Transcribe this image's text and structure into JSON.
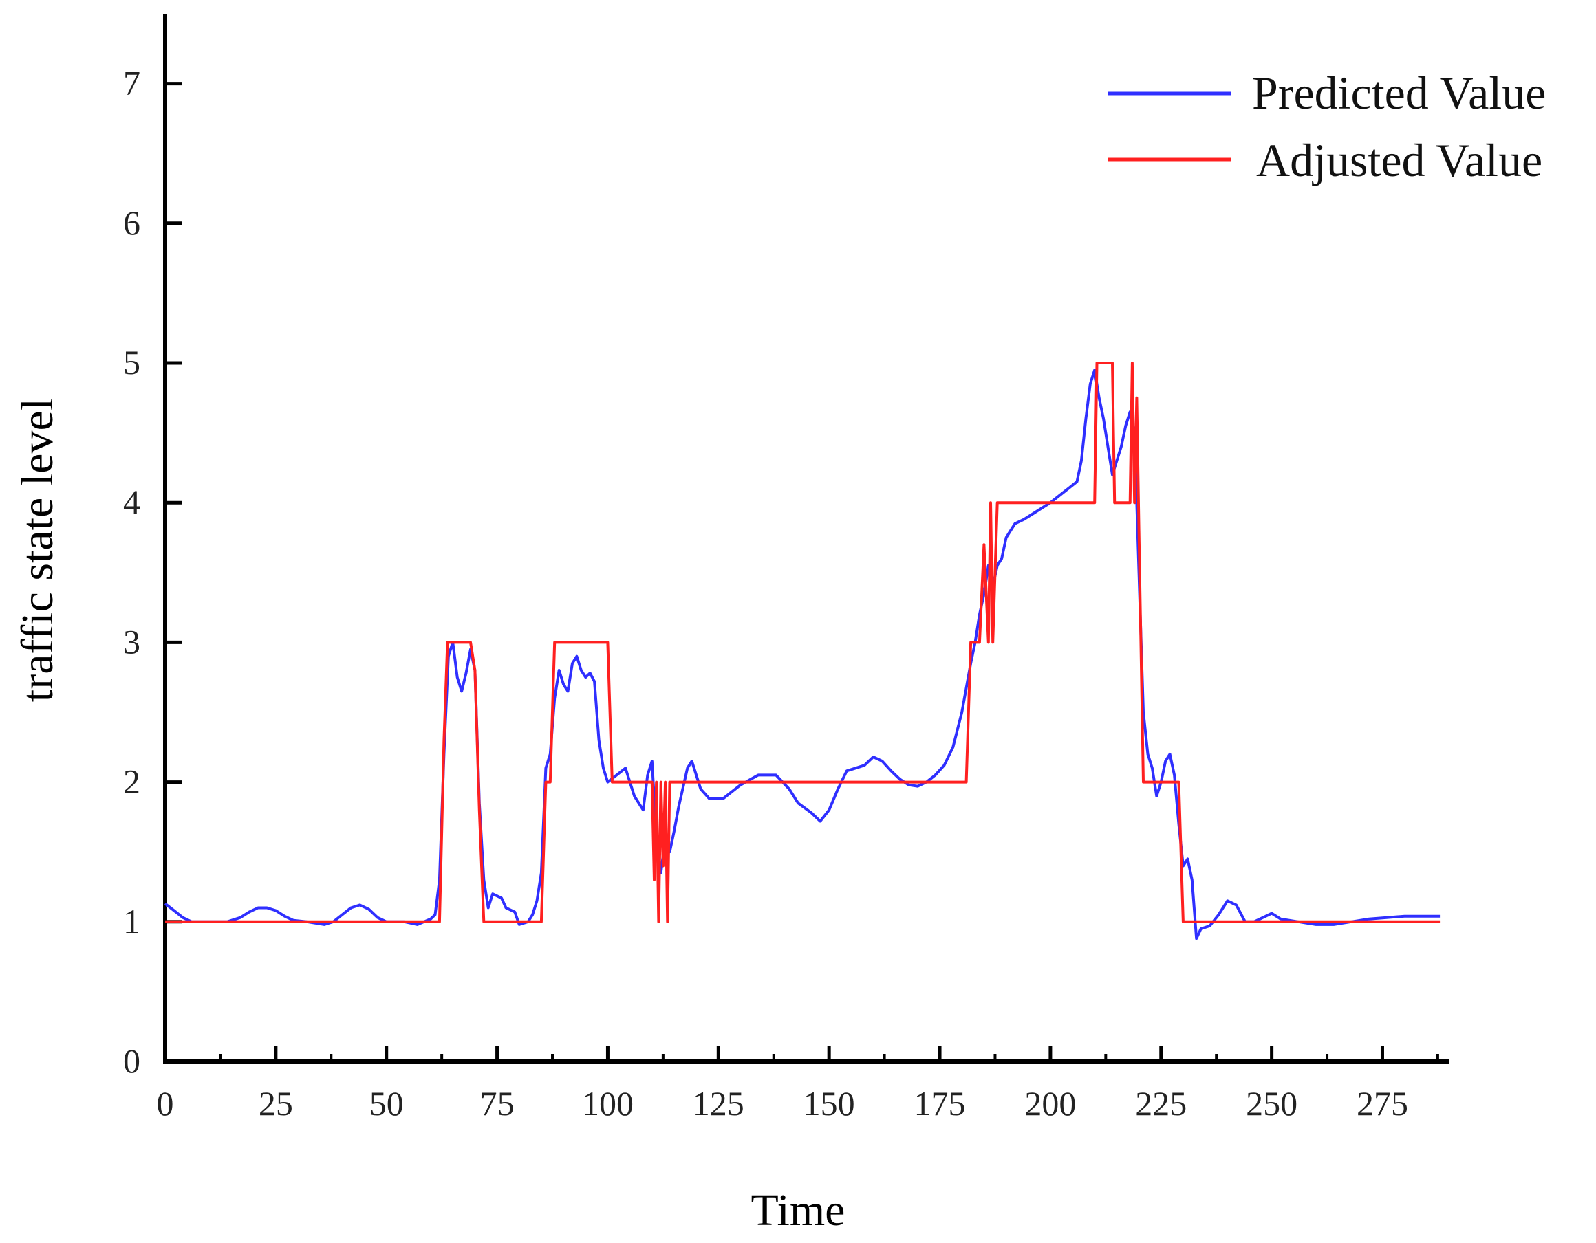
{
  "chart_data": {
    "type": "line",
    "xlabel": "Time",
    "ylabel": "traffic state level",
    "xlim": [
      0,
      290
    ],
    "ylim": [
      0,
      7.5
    ],
    "x_ticks": [
      0,
      25,
      50,
      75,
      100,
      125,
      150,
      175,
      200,
      225,
      250,
      275
    ],
    "y_ticks": [
      0,
      1,
      2,
      3,
      4,
      5,
      6,
      7
    ],
    "grid": false,
    "legend_position": "top-right",
    "series": [
      {
        "name": "Predicted Value",
        "color": "#2f2fff",
        "points": [
          [
            0,
            1.13
          ],
          [
            2,
            1.08
          ],
          [
            4,
            1.03
          ],
          [
            6,
            1.0
          ],
          [
            10,
            1.0
          ],
          [
            14,
            1.0
          ],
          [
            17,
            1.03
          ],
          [
            19,
            1.07
          ],
          [
            21,
            1.1
          ],
          [
            23,
            1.1
          ],
          [
            25,
            1.08
          ],
          [
            27,
            1.04
          ],
          [
            29,
            1.01
          ],
          [
            32,
            1.0
          ],
          [
            36,
            0.98
          ],
          [
            38,
            1.0
          ],
          [
            40,
            1.05
          ],
          [
            42,
            1.1
          ],
          [
            44,
            1.12
          ],
          [
            46,
            1.09
          ],
          [
            48,
            1.03
          ],
          [
            50,
            1.0
          ],
          [
            54,
            1.0
          ],
          [
            57,
            0.98
          ],
          [
            60,
            1.02
          ],
          [
            61,
            1.05
          ],
          [
            62,
            1.3
          ],
          [
            63,
            2.2
          ],
          [
            64,
            2.9
          ],
          [
            65,
            3.0
          ],
          [
            66,
            2.75
          ],
          [
            67,
            2.65
          ],
          [
            68,
            2.78
          ],
          [
            69,
            2.95
          ],
          [
            70,
            2.8
          ],
          [
            71,
            1.85
          ],
          [
            72,
            1.3
          ],
          [
            73,
            1.1
          ],
          [
            74,
            1.2
          ],
          [
            76,
            1.17
          ],
          [
            77,
            1.1
          ],
          [
            79,
            1.07
          ],
          [
            80,
            0.98
          ],
          [
            82,
            1.0
          ],
          [
            83,
            1.05
          ],
          [
            84,
            1.15
          ],
          [
            85,
            1.35
          ],
          [
            86,
            2.1
          ],
          [
            87,
            2.2
          ],
          [
            88,
            2.6
          ],
          [
            89,
            2.8
          ],
          [
            90,
            2.7
          ],
          [
            91,
            2.65
          ],
          [
            92,
            2.85
          ],
          [
            93,
            2.9
          ],
          [
            94,
            2.8
          ],
          [
            95,
            2.75
          ],
          [
            96,
            2.78
          ],
          [
            97,
            2.72
          ],
          [
            98,
            2.3
          ],
          [
            99,
            2.1
          ],
          [
            100,
            2.0
          ],
          [
            102,
            2.05
          ],
          [
            104,
            2.1
          ],
          [
            106,
            1.9
          ],
          [
            108,
            1.8
          ],
          [
            109,
            2.05
          ],
          [
            110,
            2.15
          ],
          [
            111,
            1.6
          ],
          [
            112,
            1.35
          ],
          [
            113,
            1.6
          ],
          [
            114,
            1.5
          ],
          [
            115,
            1.65
          ],
          [
            116,
            1.82
          ],
          [
            118,
            2.1
          ],
          [
            119,
            2.15
          ],
          [
            121,
            1.95
          ],
          [
            123,
            1.88
          ],
          [
            126,
            1.88
          ],
          [
            130,
            1.98
          ],
          [
            134,
            2.05
          ],
          [
            138,
            2.05
          ],
          [
            141,
            1.95
          ],
          [
            143,
            1.85
          ],
          [
            146,
            1.78
          ],
          [
            148,
            1.72
          ],
          [
            150,
            1.8
          ],
          [
            152,
            1.95
          ],
          [
            154,
            2.08
          ],
          [
            156,
            2.1
          ],
          [
            158,
            2.12
          ],
          [
            160,
            2.18
          ],
          [
            162,
            2.15
          ],
          [
            164,
            2.08
          ],
          [
            166,
            2.02
          ],
          [
            168,
            1.98
          ],
          [
            170,
            1.97
          ],
          [
            172,
            2.0
          ],
          [
            174,
            2.05
          ],
          [
            176,
            2.12
          ],
          [
            178,
            2.25
          ],
          [
            180,
            2.5
          ],
          [
            182,
            2.85
          ],
          [
            183,
            3.0
          ],
          [
            184,
            3.2
          ],
          [
            185,
            3.35
          ],
          [
            186,
            3.55
          ],
          [
            187,
            3.4
          ],
          [
            188,
            3.55
          ],
          [
            189,
            3.6
          ],
          [
            190,
            3.75
          ],
          [
            192,
            3.85
          ],
          [
            194,
            3.88
          ],
          [
            196,
            3.92
          ],
          [
            198,
            3.96
          ],
          [
            200,
            4.0
          ],
          [
            202,
            4.05
          ],
          [
            204,
            4.1
          ],
          [
            206,
            4.15
          ],
          [
            207,
            4.3
          ],
          [
            208,
            4.6
          ],
          [
            209,
            4.85
          ],
          [
            210,
            4.95
          ],
          [
            211,
            4.75
          ],
          [
            212,
            4.6
          ],
          [
            213,
            4.4
          ],
          [
            214,
            4.2
          ],
          [
            215,
            4.3
          ],
          [
            216,
            4.4
          ],
          [
            217,
            4.55
          ],
          [
            218,
            4.65
          ],
          [
            219,
            4.5
          ],
          [
            220,
            3.5
          ],
          [
            221,
            2.5
          ],
          [
            222,
            2.2
          ],
          [
            223,
            2.1
          ],
          [
            224,
            1.9
          ],
          [
            225,
            2.0
          ],
          [
            226,
            2.15
          ],
          [
            227,
            2.2
          ],
          [
            228,
            2.05
          ],
          [
            229,
            1.7
          ],
          [
            230,
            1.4
          ],
          [
            231,
            1.45
          ],
          [
            232,
            1.3
          ],
          [
            233,
            0.88
          ],
          [
            234,
            0.95
          ],
          [
            236,
            0.97
          ],
          [
            238,
            1.05
          ],
          [
            240,
            1.15
          ],
          [
            242,
            1.12
          ],
          [
            244,
            1.0
          ],
          [
            246,
            1.0
          ],
          [
            248,
            1.03
          ],
          [
            250,
            1.06
          ],
          [
            252,
            1.02
          ],
          [
            256,
            1.0
          ],
          [
            260,
            0.98
          ],
          [
            264,
            0.98
          ],
          [
            268,
            1.0
          ],
          [
            272,
            1.02
          ],
          [
            276,
            1.03
          ],
          [
            280,
            1.04
          ],
          [
            284,
            1.04
          ],
          [
            288,
            1.04
          ]
        ]
      },
      {
        "name": "Adjusted Value",
        "color": "#ff2020",
        "points": [
          [
            0,
            1.0
          ],
          [
            62,
            1.0
          ],
          [
            63,
            2.3
          ],
          [
            63.8,
            3.0
          ],
          [
            69,
            3.0
          ],
          [
            70,
            2.8
          ],
          [
            71,
            1.8
          ],
          [
            72,
            1.0
          ],
          [
            85,
            1.0
          ],
          [
            86,
            2.0
          ],
          [
            87,
            2.0
          ],
          [
            88,
            3.0
          ],
          [
            100,
            3.0
          ],
          [
            101,
            2.0
          ],
          [
            110,
            2.0
          ],
          [
            110.5,
            1.3
          ],
          [
            111,
            2.0
          ],
          [
            111.5,
            1.0
          ],
          [
            112,
            2.0
          ],
          [
            112.5,
            1.4
          ],
          [
            113,
            2.0
          ],
          [
            113.5,
            1.0
          ],
          [
            114,
            2.0
          ],
          [
            181,
            2.0
          ],
          [
            182,
            3.0
          ],
          [
            184,
            3.0
          ],
          [
            185,
            3.7
          ],
          [
            186,
            3.0
          ],
          [
            186.5,
            4.0
          ],
          [
            187,
            3.0
          ],
          [
            188,
            4.0
          ],
          [
            210,
            4.0
          ],
          [
            210.5,
            5.0
          ],
          [
            214,
            5.0
          ],
          [
            214.5,
            4.0
          ],
          [
            218,
            4.0
          ],
          [
            218.5,
            5.0
          ],
          [
            219,
            4.0
          ],
          [
            219.5,
            4.75
          ],
          [
            220,
            3.8
          ],
          [
            221,
            2.0
          ],
          [
            229,
            2.0
          ],
          [
            230,
            1.0
          ],
          [
            288,
            1.0
          ]
        ]
      }
    ]
  }
}
